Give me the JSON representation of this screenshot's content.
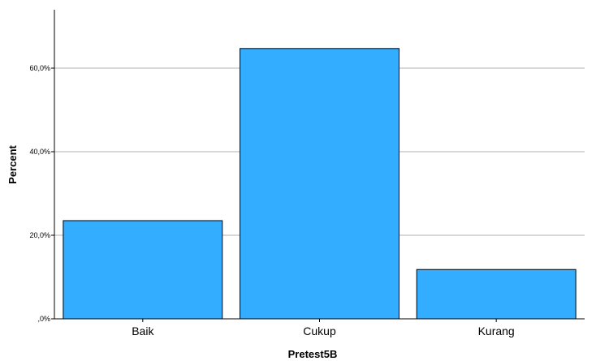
{
  "chart_data": {
    "type": "bar",
    "title": "",
    "xlabel": "Pretest5B",
    "ylabel": "Percent",
    "categories": [
      "Baik",
      "Cukup",
      "Kurang"
    ],
    "values": [
      23.5,
      64.7,
      11.8
    ],
    "ylim": [
      0,
      74
    ],
    "yticks": [
      0,
      20,
      40,
      60
    ],
    "ytick_labels": [
      ",0%",
      "20,0%",
      "40,0%",
      "60,0%"
    ],
    "grid": true,
    "bar_color": "#33adff",
    "bar_edge_color": "#000000",
    "grid_color": "#b0b0b0"
  }
}
